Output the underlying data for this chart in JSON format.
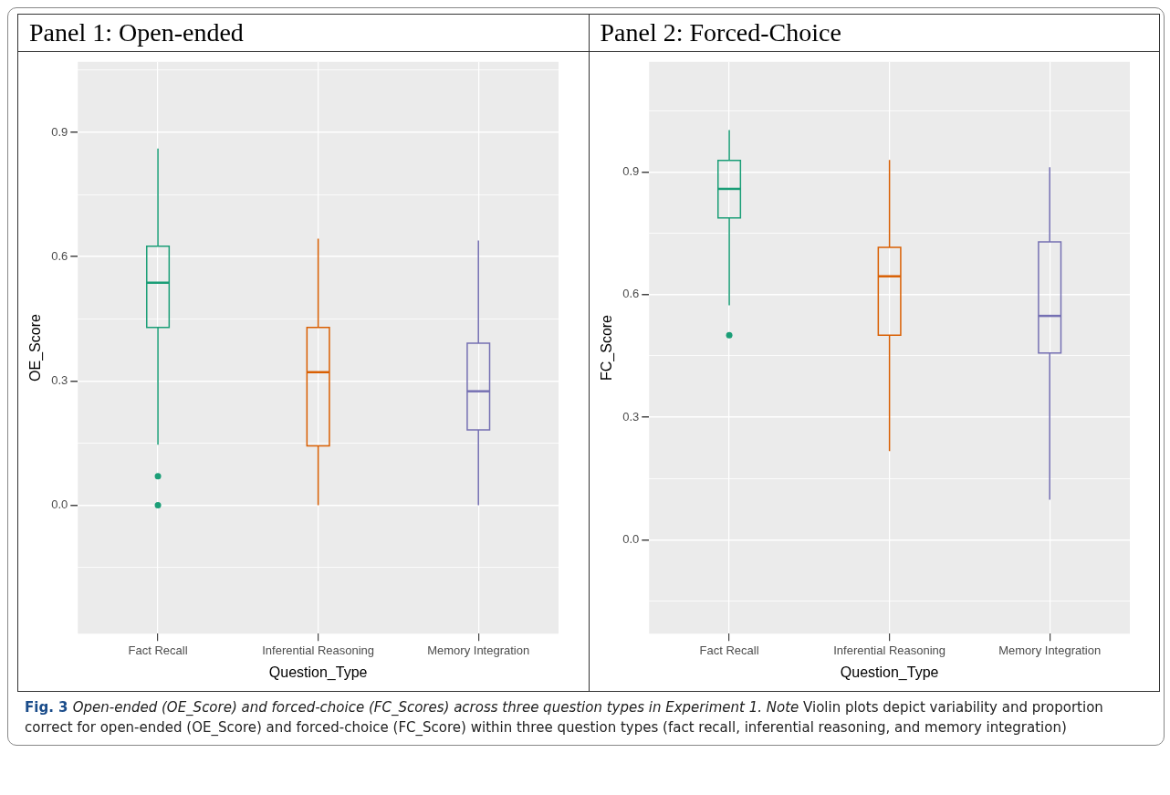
{
  "chart_data": [
    {
      "type": "box",
      "title": "Panel 1: Open-ended",
      "xlabel": "Question_Type",
      "ylabel": "OE_Score",
      "categories": [
        "Fact Recall",
        "Inferential Reasoning",
        "Memory Integration"
      ],
      "series": [
        {
          "color": "#1b9e77",
          "boxes": [
            {
              "low": 0.146,
              "q1": 0.429,
              "median": 0.537,
              "q3": 0.625,
              "high": 0.861,
              "outliers": [
                0.07,
                0.0
              ]
            },
            null,
            null
          ]
        },
        {
          "color": "#d95f02",
          "boxes": [
            null,
            {
              "low": 0.0,
              "q1": 0.143,
              "median": 0.321,
              "q3": 0.429,
              "high": 0.643
            },
            null
          ]
        },
        {
          "color": "#7570b3",
          "boxes": [
            null,
            null,
            {
              "low": 0.0,
              "q1": 0.182,
              "median": 0.275,
              "q3": 0.391,
              "high": 0.639
            }
          ]
        }
      ],
      "ylim": [
        -0.31,
        1.07
      ],
      "yticks": [
        {
          "value": -0.15,
          "label": null
        },
        {
          "value": 0,
          "label": "0.0"
        },
        {
          "value": 0.15,
          "label": null
        },
        0.3,
        {
          "value": 0.45,
          "label": null
        },
        0.6,
        {
          "value": 0.75,
          "label": null
        },
        0.9,
        {
          "value": 1.05,
          "label": null
        }
      ],
      "grid": true,
      "legend": false,
      "annotations": [
        "Fig. 3",
        "Open-ended (OE_Score) and forced-choice (FC_Scores) across three question types in Experiment 1. Note",
        "Violin plots depict variability and proportion correct for open-ended (OE_Score) and forced-choice (FC_Score) within three question types (fact recall, inferential reasoning, and memory integration)"
      ]
    },
    {
      "type": "box",
      "title": "Panel 2: Forced-Choice",
      "xlabel": "Question_Type",
      "ylabel": "FC_Score",
      "categories": [
        "Fact Recall",
        "Inferential Reasoning",
        "Memory Integration"
      ],
      "series": [
        {
          "color": "#1b9e77",
          "boxes": [
            {
              "low": 0.574,
              "q1": 0.788,
              "median": 0.859,
              "q3": 0.929,
              "high": 1.003,
              "outliers": [
                0.501
              ]
            },
            null,
            null
          ]
        },
        {
          "color": "#d95f02",
          "boxes": [
            null,
            {
              "low": 0.217,
              "q1": 0.501,
              "median": 0.645,
              "q3": 0.716,
              "high": 0.93
            },
            null
          ]
        },
        {
          "color": "#7570b3",
          "boxes": [
            null,
            null,
            {
              "low": 0.098,
              "q1": 0.457,
              "median": 0.548,
              "q3": 0.729,
              "high": 0.912
            }
          ]
        }
      ],
      "ylim": [
        -0.23,
        1.17
      ],
      "yticks": [
        {
          "value": -0.15,
          "label": null
        },
        {
          "value": 0,
          "label": "0.0"
        },
        {
          "value": 0.15,
          "label": null
        },
        0.3,
        {
          "value": 0.45,
          "label": null
        },
        0.6,
        {
          "value": 0.75,
          "label": null
        },
        0.9,
        {
          "value": 1.05,
          "label": null
        }
      ],
      "grid": true,
      "legend": false
    }
  ]
}
